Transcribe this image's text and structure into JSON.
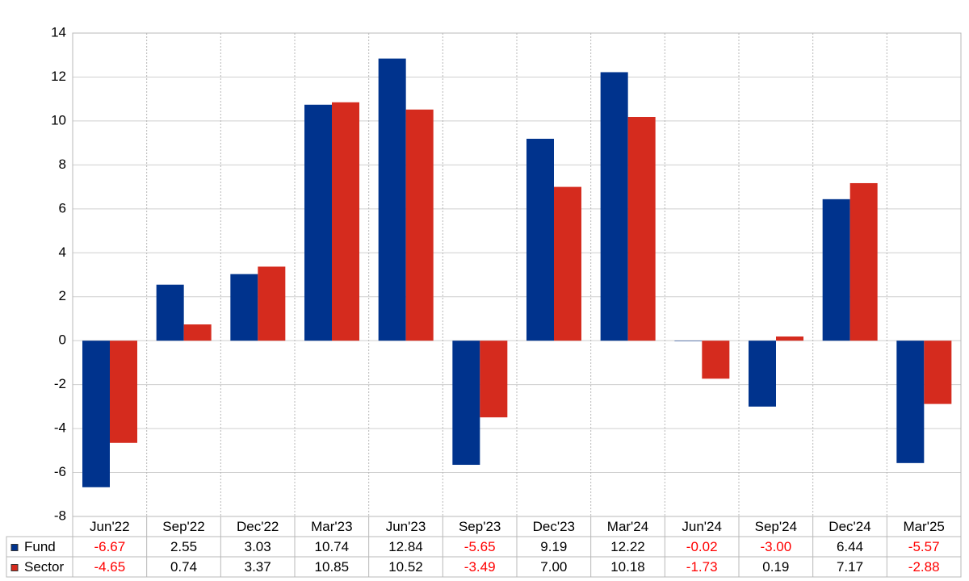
{
  "chart_data": {
    "type": "bar",
    "categories": [
      "Jun'22",
      "Sep'22",
      "Dec'22",
      "Mar'23",
      "Jun'23",
      "Sep'23",
      "Dec'23",
      "Mar'24",
      "Jun'24",
      "Sep'24",
      "Dec'24",
      "Mar'25"
    ],
    "series": [
      {
        "name": "Fund",
        "color": "#00338d",
        "values": [
          -6.67,
          2.55,
          3.03,
          10.74,
          12.84,
          -5.65,
          9.19,
          12.22,
          -0.02,
          -3.0,
          6.44,
          -5.57
        ],
        "value_labels": [
          "-6.67",
          "2.55",
          "3.03",
          "10.74",
          "12.84",
          "-5.65",
          "9.19",
          "12.22",
          "-0.02",
          "-3.00",
          "6.44",
          "-5.57"
        ]
      },
      {
        "name": "Sector",
        "color": "#d52b1e",
        "values": [
          -4.65,
          0.74,
          3.37,
          10.85,
          10.52,
          -3.49,
          7.0,
          10.18,
          -1.73,
          0.19,
          7.17,
          -2.88
        ],
        "value_labels": [
          "-4.65",
          "0.74",
          "3.37",
          "10.85",
          "10.52",
          "-3.49",
          "7.00",
          "10.18",
          "-1.73",
          "0.19",
          "7.17",
          "-2.88"
        ]
      }
    ],
    "ylim": [
      -8,
      14
    ],
    "yticks": [
      -8,
      -6,
      -4,
      -2,
      0,
      2,
      4,
      6,
      8,
      10,
      12,
      14
    ],
    "grid": true,
    "negative_label_color": "#ff0000"
  }
}
